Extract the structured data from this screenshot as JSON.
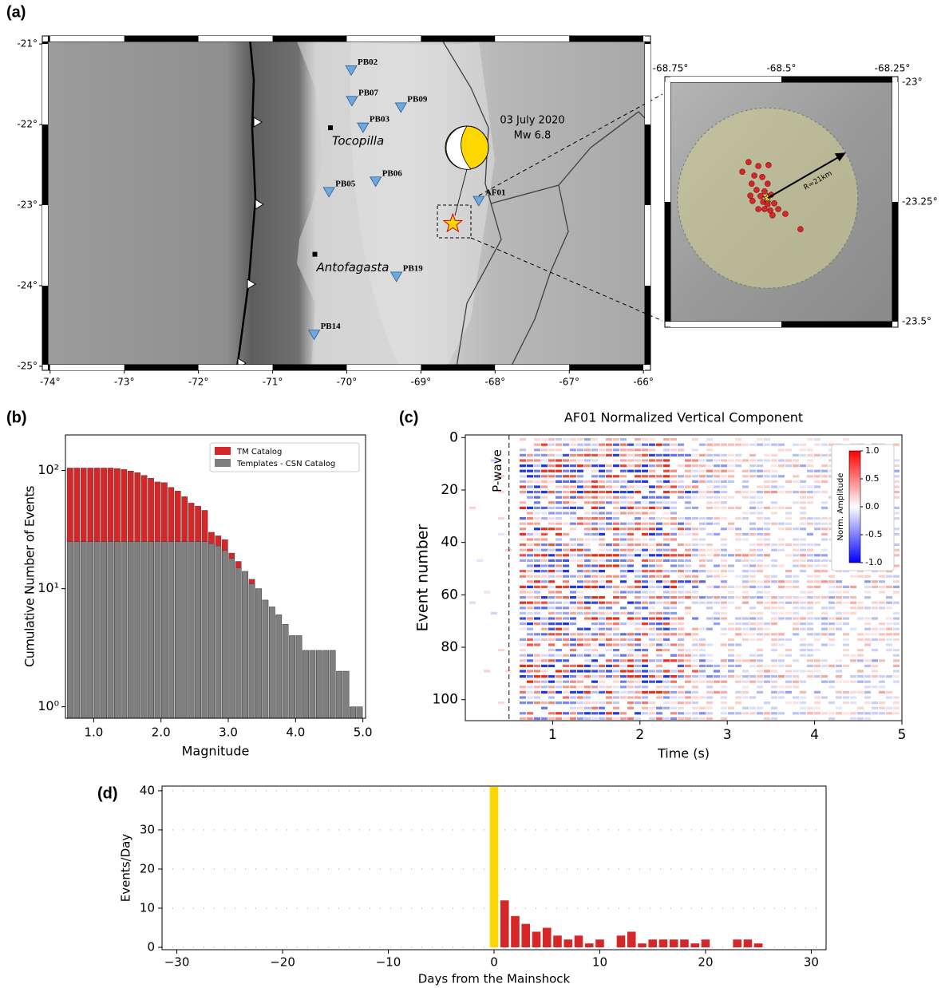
{
  "chart_data": [
    {
      "type": "map",
      "panel_label": "(a)",
      "xlim": [
        -74.03,
        -65.98
      ],
      "ylim": [
        -25.02,
        -20.93
      ],
      "xticks": [
        {
          "value": -74,
          "label": "-74°"
        },
        {
          "value": -73,
          "label": "-73°"
        },
        {
          "value": -72,
          "label": "-72°"
        },
        {
          "value": -71,
          "label": "-71°"
        },
        {
          "value": -70,
          "label": "-70°"
        },
        {
          "value": -69,
          "label": "-69°"
        },
        {
          "value": -68,
          "label": "-68°"
        },
        {
          "value": -67,
          "label": "-67°"
        },
        {
          "value": -66,
          "label": "-66°"
        }
      ],
      "yticks": [
        {
          "value": -21,
          "label": "-21°"
        },
        {
          "value": -22,
          "label": "-22°"
        },
        {
          "value": -23,
          "label": "-23°"
        },
        {
          "value": -24,
          "label": "-24°"
        },
        {
          "value": -25,
          "label": "-25°"
        }
      ],
      "stations": {
        "names": [
          "PB02",
          "PB07",
          "PB09",
          "PB03",
          "PB06",
          "PB05",
          "AF01",
          "PB19",
          "PB14"
        ],
        "lon": [
          -69.94,
          -69.93,
          -69.27,
          -69.78,
          -69.61,
          -70.24,
          -68.22,
          -69.33,
          -70.44
        ],
        "lat": [
          -21.33,
          -21.71,
          -21.79,
          -22.04,
          -22.71,
          -22.84,
          -22.95,
          -23.89,
          -24.61
        ],
        "color": "#6fa8dc"
      },
      "cities": {
        "names": [
          "Tocopilla",
          "Antofagasta"
        ],
        "lon": [
          -70.22,
          -70.43
        ],
        "lat": [
          -22.04,
          -23.61
        ]
      },
      "mainshock": {
        "lon": -68.57,
        "lat": -23.23,
        "color": "#ffd700"
      },
      "annotation": [
        "03 July 2020",
        "Mw 6.8"
      ]
    },
    {
      "type": "map_inset",
      "xlim": [
        -68.75,
        -68.25
      ],
      "ylim": [
        -23.5,
        -23
      ],
      "xticks": [
        {
          "value": -68.75,
          "label": "-68.75°"
        },
        {
          "value": -68.5,
          "label": "-68.5°"
        },
        {
          "value": -68.25,
          "label": "-68.25°"
        }
      ],
      "yticks": [
        {
          "value": -23,
          "label": "-23°"
        },
        {
          "value": -23.25,
          "label": "-23.25°"
        },
        {
          "value": -23.5,
          "label": "-23.5°"
        }
      ],
      "events": {
        "lon": [
          -68.574,
          -68.552,
          -68.529,
          -68.588,
          -68.561,
          -68.543,
          -68.531,
          -68.567,
          -68.556,
          -68.538,
          -68.547,
          -68.523,
          -68.565,
          -68.541,
          -68.531,
          -68.516,
          -68.538,
          -68.525,
          -68.507,
          -68.491,
          -68.457,
          -68.552,
          -68.52,
          -68.57
        ],
        "lat": [
          -23.167,
          -23.175,
          -23.173,
          -23.187,
          -23.195,
          -23.198,
          -23.212,
          -23.212,
          -23.225,
          -23.228,
          -23.238,
          -23.235,
          -23.248,
          -23.25,
          -23.255,
          -23.253,
          -23.265,
          -23.268,
          -23.265,
          -23.275,
          -23.307,
          -23.265,
          -23.278,
          -23.237
        ],
        "color": "#d62728"
      },
      "mainshock": {
        "lon": -68.531,
        "lat": -23.242,
        "color": "#ffd700"
      },
      "radius_label": "R=21km"
    },
    {
      "type": "histogram",
      "panel_label": "(b)",
      "log_y": true,
      "xlabel": "Magnitude",
      "ylabel": "Cumulative Number of Events",
      "bins": [
        0.6,
        0.7,
        0.8,
        0.9,
        1.0,
        1.1,
        1.2,
        1.3,
        1.4,
        1.5,
        1.6,
        1.7,
        1.8,
        1.9,
        2.0,
        2.1,
        2.2,
        2.3,
        2.4,
        2.5,
        2.6,
        2.7,
        2.8,
        2.9,
        3.0,
        3.1,
        3.2,
        3.3,
        3.4,
        3.5,
        3.6,
        3.7,
        3.8,
        3.9,
        4.0,
        4.1,
        4.2,
        4.3,
        4.4,
        4.5,
        4.6,
        4.7,
        4.8,
        4.9,
        5.0
      ],
      "series": [
        {
          "name": "TM Catalog",
          "color": "#d62728",
          "values": [
            105,
            105,
            105,
            105,
            105,
            105,
            105,
            104,
            102,
            99,
            96,
            91,
            86,
            80,
            79,
            72,
            67,
            60,
            53,
            50,
            46,
            30,
            28,
            26,
            20,
            17,
            14,
            12,
            10,
            8,
            7,
            6,
            5,
            4,
            4,
            3,
            3,
            3,
            3,
            3,
            2,
            2,
            1,
            1
          ]
        },
        {
          "name": "Templates - CSN Catalog",
          "color": "#7f7f7f",
          "values": [
            25,
            25,
            25,
            25,
            25,
            25,
            25,
            25,
            25,
            25,
            25,
            25,
            25,
            25,
            25,
            25,
            25,
            25,
            25,
            25,
            25,
            24,
            23,
            21,
            18,
            15,
            14,
            11,
            10,
            8,
            7,
            6,
            5,
            4,
            4,
            3,
            3,
            3,
            3,
            3,
            2,
            2,
            1,
            1
          ]
        }
      ],
      "xlim": [
        0.58,
        5.04
      ],
      "ylim": [
        0.8,
        200
      ],
      "xticks": [
        {
          "value": 1,
          "label": "1.0"
        },
        {
          "value": 2,
          "label": "2.0"
        },
        {
          "value": 3,
          "label": "3.0"
        },
        {
          "value": 4,
          "label": "4.0"
        },
        {
          "value": 5,
          "label": "5.0"
        }
      ],
      "yticks": [
        {
          "value": 1,
          "label": "10⁰"
        },
        {
          "value": 10,
          "label": "10¹"
        },
        {
          "value": 100,
          "label": "10²"
        }
      ],
      "legend": "upper right"
    },
    {
      "type": "heatmap",
      "panel_label": "(c)",
      "title": "AF01 Normalized Vertical Component",
      "xlabel": "Time (s)",
      "ylabel": "Event number",
      "annotation": "P-wave",
      "pwave_time": 0.5,
      "xlim": [
        0,
        5
      ],
      "ylim": [
        -1,
        108
      ],
      "y_inverted": true,
      "xticks": [
        1,
        2,
        3,
        4,
        5
      ],
      "yticks": [
        0,
        20,
        40,
        60,
        80,
        100
      ],
      "colorbar": {
        "label": "Norm. Amplitude",
        "lim": [
          -1,
          1
        ],
        "colors": [
          "#0000ff",
          "#ffffff",
          "#ff0000"
        ],
        "ticks": [
          {
            "value": 1,
            "label": "1.0"
          },
          {
            "value": 0.5,
            "label": "0.5"
          },
          {
            "value": 0,
            "label": "0.0"
          },
          {
            "value": -0.5,
            "label": "-0.5"
          },
          {
            "value": -1,
            "label": "-1.0"
          }
        ]
      }
    },
    {
      "type": "bar",
      "panel_label": "(d)",
      "xlabel": "Days from the Mainshock",
      "ylabel": "Events/Day",
      "x": [
        0,
        1,
        2,
        3,
        4,
        5,
        6,
        7,
        8,
        9,
        10,
        11,
        12,
        13,
        14,
        15,
        16,
        17,
        18,
        19,
        20,
        21,
        22,
        23,
        24,
        25
      ],
      "values": [
        41,
        12,
        8,
        6,
        4,
        5,
        3,
        2,
        3,
        1,
        2,
        0,
        3,
        4,
        1,
        2,
        2,
        2,
        2,
        1,
        2,
        0,
        0,
        2,
        2,
        1
      ],
      "colors": [
        "#ffd700",
        "#d62728",
        "#d62728",
        "#d62728",
        "#d62728",
        "#d62728",
        "#d62728",
        "#d62728",
        "#d62728",
        "#d62728",
        "#d62728",
        "#d62728",
        "#d62728",
        "#d62728",
        "#d62728",
        "#d62728",
        "#d62728",
        "#d62728",
        "#d62728",
        "#d62728",
        "#d62728",
        "#d62728",
        "#d62728",
        "#d62728",
        "#d62728",
        "#d62728"
      ],
      "xlim": [
        -31.4,
        31.4
      ],
      "ylim": [
        -0.6,
        41.2
      ],
      "xticks": [
        {
          "value": -30,
          "label": "−30"
        },
        {
          "value": -20,
          "label": "−20"
        },
        {
          "value": -10,
          "label": "−10"
        },
        0,
        10,
        20,
        30
      ],
      "yticks": [
        0,
        10,
        20,
        30,
        40
      ],
      "grid": true
    }
  ]
}
